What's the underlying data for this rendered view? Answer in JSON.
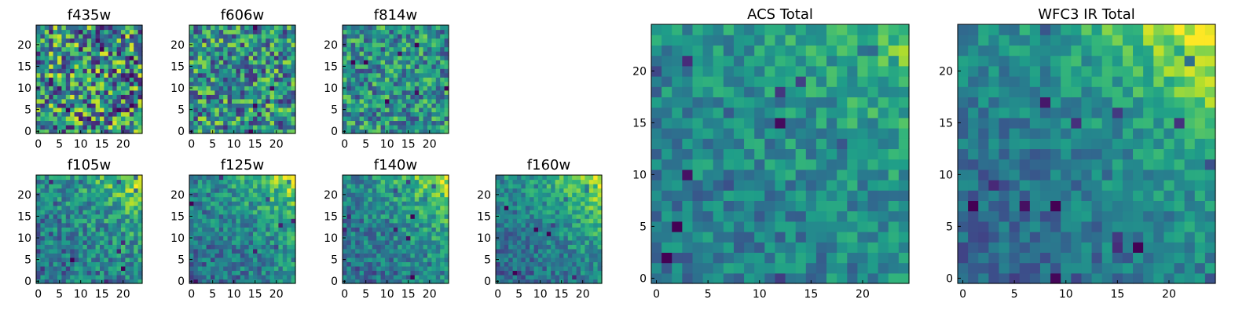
{
  "colormap": "viridis",
  "chart_data": [
    {
      "type": "heatmap",
      "title": "f435w",
      "xlim": [
        0,
        25
      ],
      "ylim": [
        0,
        25
      ],
      "xticks": [
        0,
        5,
        10,
        15,
        20
      ],
      "yticks": [
        0,
        5,
        10,
        15,
        20
      ],
      "pattern": "noise",
      "gradient": 0.05,
      "noise": 0.9
    },
    {
      "type": "heatmap",
      "title": "f606w",
      "xlim": [
        0,
        25
      ],
      "ylim": [
        0,
        25
      ],
      "xticks": [
        0,
        5,
        10,
        15,
        20
      ],
      "yticks": [
        0,
        5,
        10,
        15,
        20
      ],
      "pattern": "noise",
      "gradient": 0.2,
      "noise": 0.75
    },
    {
      "type": "heatmap",
      "title": "f814w",
      "xlim": [
        0,
        25
      ],
      "ylim": [
        0,
        25
      ],
      "xticks": [
        0,
        5,
        10,
        15,
        20
      ],
      "yticks": [
        0,
        5,
        10,
        15,
        20
      ],
      "pattern": "noise",
      "gradient": 0.35,
      "noise": 0.6
    },
    {
      "type": "heatmap",
      "title": "f105w",
      "xlim": [
        0,
        25
      ],
      "ylim": [
        0,
        25
      ],
      "xticks": [
        0,
        5,
        10,
        15,
        20
      ],
      "yticks": [
        0,
        5,
        10,
        15,
        20
      ],
      "pattern": "top-right-bright",
      "gradient": 0.55,
      "noise": 0.45
    },
    {
      "type": "heatmap",
      "title": "f125w",
      "xlim": [
        0,
        25
      ],
      "ylim": [
        0,
        25
      ],
      "xticks": [
        0,
        5,
        10,
        15,
        20
      ],
      "yticks": [
        0,
        5,
        10,
        15,
        20
      ],
      "pattern": "top-right-bright",
      "gradient": 0.6,
      "noise": 0.4
    },
    {
      "type": "heatmap",
      "title": "f140w",
      "xlim": [
        0,
        25
      ],
      "ylim": [
        0,
        25
      ],
      "xticks": [
        0,
        5,
        10,
        15,
        20
      ],
      "yticks": [
        0,
        5,
        10,
        15,
        20
      ],
      "pattern": "top-right-bright",
      "gradient": 0.6,
      "noise": 0.4
    },
    {
      "type": "heatmap",
      "title": "f160w",
      "xlim": [
        0,
        25
      ],
      "ylim": [
        0,
        25
      ],
      "xticks": [
        0,
        5,
        10,
        15,
        20
      ],
      "yticks": [
        0,
        5,
        10,
        15,
        20
      ],
      "pattern": "top-right-bright",
      "gradient": 0.7,
      "noise": 0.35
    },
    {
      "type": "heatmap",
      "title": "ACS Total",
      "xlim": [
        0,
        25
      ],
      "ylim": [
        0,
        25
      ],
      "xticks": [
        0,
        5,
        10,
        15,
        20
      ],
      "yticks": [
        0,
        5,
        10,
        15,
        20
      ],
      "pattern": "top-right-bright",
      "gradient": 0.35,
      "noise": 0.35
    },
    {
      "type": "heatmap",
      "title": "WFC3 IR Total",
      "xlim": [
        0,
        25
      ],
      "ylim": [
        0,
        25
      ],
      "xticks": [
        0,
        5,
        10,
        15,
        20
      ],
      "yticks": [
        0,
        5,
        10,
        15,
        20
      ],
      "pattern": "top-right-bright",
      "gradient": 0.75,
      "noise": 0.3
    }
  ]
}
